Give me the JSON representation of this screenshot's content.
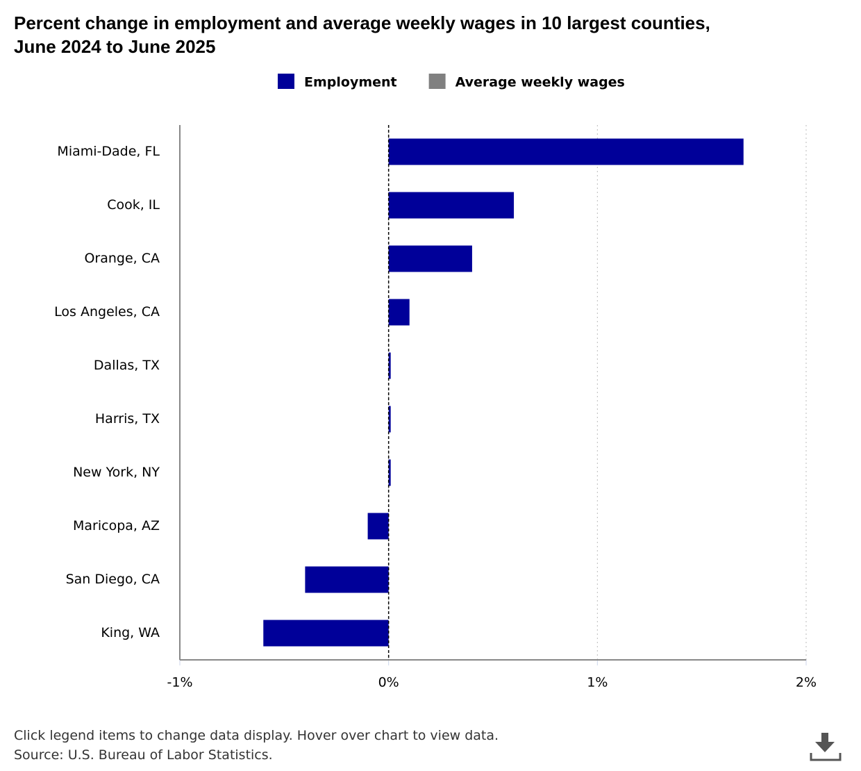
{
  "chart_data": {
    "type": "hbar",
    "title": "Percent change in employment and average weekly wages in 10 largest counties,",
    "subtitle": "June 2024 to June 2025",
    "categories": [
      "Miami-Dade, FL",
      "Cook, IL",
      "Orange, CA",
      "Los Angeles, CA",
      "Dallas, TX",
      "Harris, TX",
      "New York, NY",
      "Maricopa, AZ",
      "San Diego, CA",
      "King, WA"
    ],
    "series": [
      {
        "name": "Employment",
        "color": "#000099",
        "values": [
          1.7,
          0.6,
          0.4,
          0.1,
          0.01,
          0.01,
          0.01,
          -0.1,
          -0.4,
          -0.6
        ]
      },
      {
        "name": "Average weekly wages",
        "color": "#808080",
        "values": [
          null,
          null,
          null,
          null,
          null,
          null,
          null,
          null,
          null,
          null
        ],
        "hidden": true
      }
    ],
    "xlim": [
      -1,
      2
    ],
    "xticks": [
      {
        "value": -1,
        "label": "-1%"
      },
      {
        "value": 0,
        "label": "0%"
      },
      {
        "value": 1,
        "label": "1%"
      },
      {
        "value": 2,
        "label": "2%"
      }
    ],
    "grid": true,
    "notes": [
      "Click legend items to change data display. Hover over chart to view data.",
      "Source: U.S. Bureau of Labor Statistics."
    ]
  }
}
